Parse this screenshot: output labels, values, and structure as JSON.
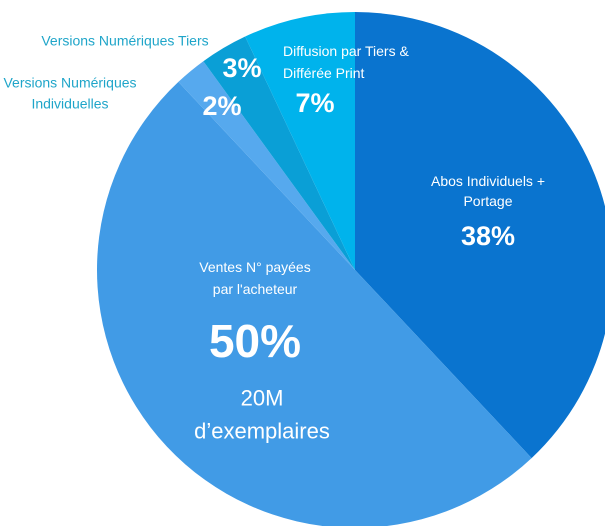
{
  "chart_data": {
    "type": "pie",
    "categories": [
      "Abos Individuels +\nPortage",
      "Ventes N° payées\npar l'acheteur",
      "Versions Numériques\nIndividuelles",
      "Versions Numériques Tiers",
      "Diffusion par Tiers &\nDifférée Print"
    ],
    "values": [
      38,
      50,
      2,
      3,
      7
    ],
    "value_labels": [
      "38%",
      "50%",
      "2%",
      "3%",
      "7%"
    ],
    "colors": [
      "#0a74cf",
      "#419be6",
      "#56a9ee",
      "#0a9fd6",
      "#00b3ec"
    ],
    "annotation": "20M\nd’exemplaires"
  }
}
